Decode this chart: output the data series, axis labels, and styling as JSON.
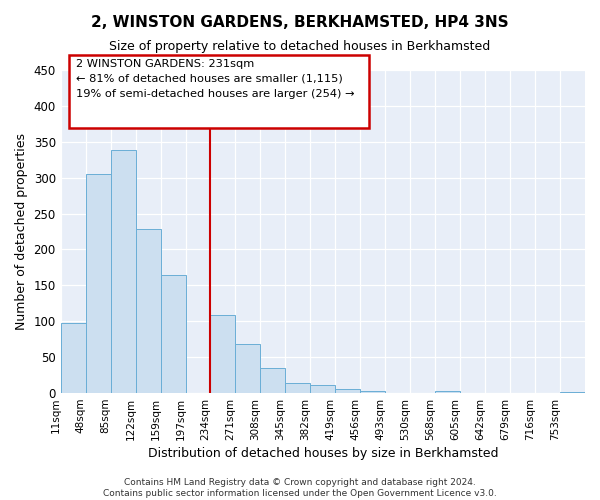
{
  "title": "2, WINSTON GARDENS, BERKHAMSTED, HP4 3NS",
  "subtitle": "Size of property relative to detached houses in Berkhamsted",
  "xlabel": "Distribution of detached houses by size in Berkhamsted",
  "ylabel": "Number of detached properties",
  "footer_lines": [
    "Contains HM Land Registry data © Crown copyright and database right 2024.",
    "Contains public sector information licensed under the Open Government Licence v3.0."
  ],
  "bin_labels": [
    "11sqm",
    "48sqm",
    "85sqm",
    "122sqm",
    "159sqm",
    "197sqm",
    "234sqm",
    "271sqm",
    "308sqm",
    "345sqm",
    "382sqm",
    "419sqm",
    "456sqm",
    "493sqm",
    "530sqm",
    "568sqm",
    "605sqm",
    "642sqm",
    "679sqm",
    "716sqm",
    "753sqm"
  ],
  "bar_heights": [
    97,
    305,
    338,
    228,
    165,
    0,
    109,
    69,
    35,
    14,
    11,
    6,
    3,
    0,
    0,
    3,
    0,
    0,
    0,
    0,
    2
  ],
  "bar_color": "#ccdff0",
  "bar_edge_color": "#6aaed6",
  "vline_x": 6.0,
  "vline_color": "#cc0000",
  "annotation_box_title": "2 WINSTON GARDENS: 231sqm",
  "annotation_box_line2": "← 81% of detached houses are smaller (1,115)",
  "annotation_box_line3": "19% of semi-detached houses are larger (254) →",
  "ylim": [
    0,
    450
  ],
  "yticks": [
    0,
    50,
    100,
    150,
    200,
    250,
    300,
    350,
    400,
    450
  ],
  "bg_color": "#e8eef8"
}
